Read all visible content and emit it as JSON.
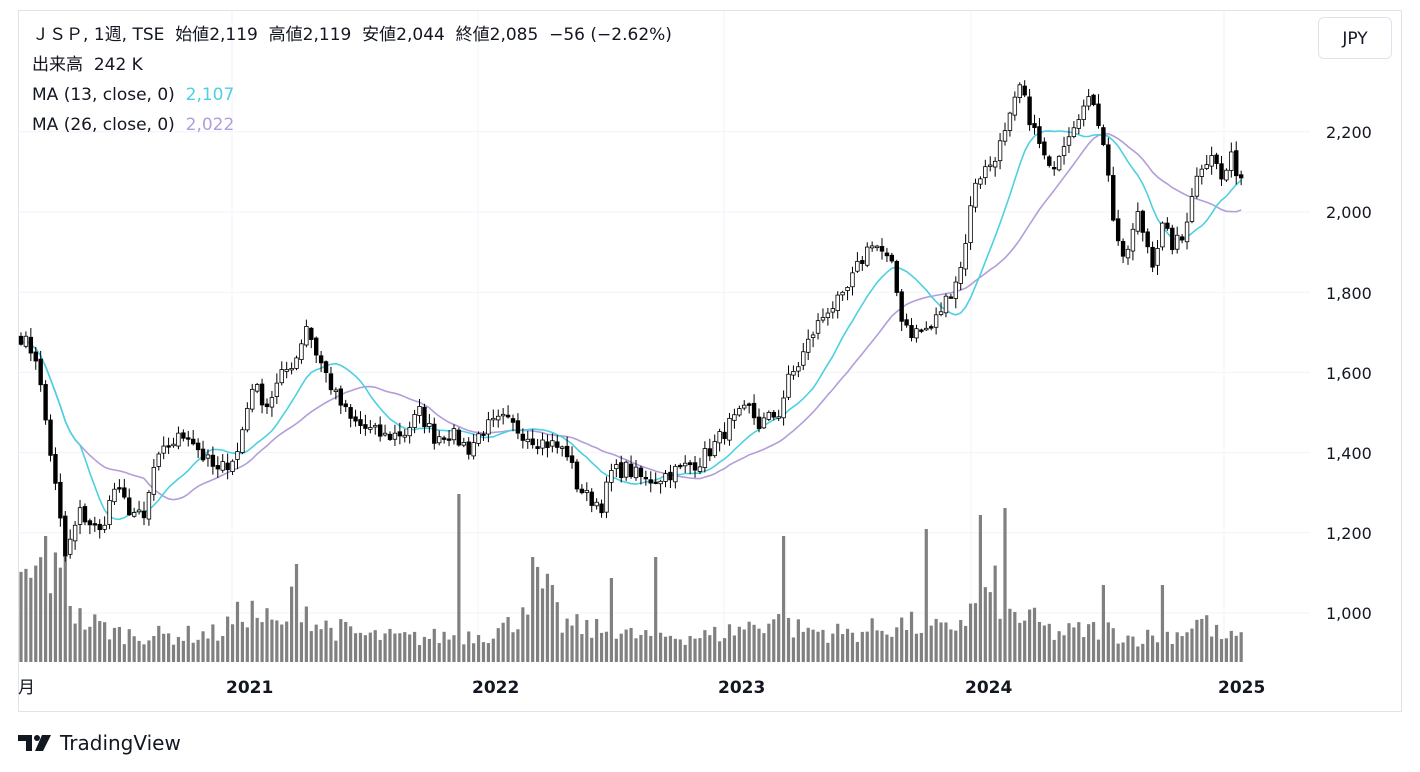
{
  "header": {
    "symbol": "ＪＳＰ",
    "interval": "1週",
    "exchange": "TSE",
    "open_label": "始値",
    "open": "2,119",
    "high_label": "高値",
    "high": "2,119",
    "low_label": "安値",
    "low": "2,044",
    "close_label": "終値",
    "close": "2,085",
    "change": "−56 (−2.62%)",
    "volume_label": "出来高",
    "volume": "242 K",
    "ma1_label": "MA (13, close, 0)",
    "ma1_value": "2,107",
    "ma2_label": "MA (26, close, 0)",
    "ma2_value": "2,022"
  },
  "currency_button": "JPY",
  "brand": "TradingView",
  "colors": {
    "up": "#ffffff",
    "down": "#000000",
    "ma13": "#4dd0e1",
    "ma26": "#b39ddb",
    "volume": "#808080",
    "grid": "#f0f3fa"
  },
  "chart_data": {
    "type": "candlestick",
    "y_ticks": [
      "2,200",
      "2,000",
      "1,800",
      "1,600",
      "1,400",
      "1,200",
      "1,000"
    ],
    "y_tick_values": [
      2200,
      2000,
      1800,
      1600,
      1400,
      1200,
      1000
    ],
    "x_ticks": [
      "月",
      "2021",
      "2022",
      "2023",
      "2024",
      "2025"
    ],
    "ylim": [
      900,
      2400
    ],
    "series": [
      {
        "name": "MA (13, close, 0)",
        "last": 2107
      },
      {
        "name": "MA (26, close, 0)",
        "last": 2022
      }
    ],
    "anchors": [
      [
        0,
        1690
      ],
      [
        3,
        1640
      ],
      [
        6,
        1400
      ],
      [
        9,
        1140
      ],
      [
        12,
        1250
      ],
      [
        16,
        1200
      ],
      [
        19,
        1310
      ],
      [
        22,
        1260
      ],
      [
        25,
        1230
      ],
      [
        27,
        1360
      ],
      [
        30,
        1420
      ],
      [
        34,
        1450
      ],
      [
        37,
        1390
      ],
      [
        40,
        1350
      ],
      [
        44,
        1400
      ],
      [
        47,
        1570
      ],
      [
        50,
        1520
      ],
      [
        53,
        1590
      ],
      [
        56,
        1640
      ],
      [
        58,
        1720
      ],
      [
        60,
        1650
      ],
      [
        64,
        1540
      ],
      [
        67,
        1480
      ],
      [
        70,
        1460
      ],
      [
        74,
        1440
      ],
      [
        78,
        1450
      ],
      [
        81,
        1500
      ],
      [
        84,
        1440
      ],
      [
        87,
        1450
      ],
      [
        91,
        1410
      ],
      [
        94,
        1460
      ],
      [
        98,
        1480
      ],
      [
        102,
        1450
      ],
      [
        105,
        1430
      ],
      [
        108,
        1420
      ],
      [
        111,
        1400
      ],
      [
        113,
        1320
      ],
      [
        115,
        1290
      ],
      [
        118,
        1270
      ],
      [
        120,
        1350
      ],
      [
        123,
        1360
      ],
      [
        127,
        1330
      ],
      [
        130,
        1340
      ],
      [
        134,
        1360
      ],
      [
        138,
        1380
      ],
      [
        141,
        1420
      ],
      [
        144,
        1470
      ],
      [
        148,
        1510
      ],
      [
        150,
        1470
      ],
      [
        154,
        1500
      ],
      [
        156,
        1580
      ],
      [
        158,
        1620
      ],
      [
        161,
        1700
      ],
      [
        164,
        1760
      ],
      [
        167,
        1780
      ],
      [
        170,
        1860
      ],
      [
        173,
        1930
      ],
      [
        175,
        1900
      ],
      [
        177,
        1860
      ],
      [
        179,
        1740
      ],
      [
        181,
        1700
      ],
      [
        185,
        1710
      ],
      [
        188,
        1780
      ],
      [
        191,
        1860
      ],
      [
        194,
        2080
      ],
      [
        197,
        2120
      ],
      [
        200,
        2190
      ],
      [
        203,
        2310
      ],
      [
        206,
        2200
      ],
      [
        209,
        2100
      ],
      [
        212,
        2180
      ],
      [
        215,
        2250
      ],
      [
        218,
        2280
      ],
      [
        220,
        2180
      ],
      [
        222,
        1990
      ],
      [
        224,
        1870
      ],
      [
        227,
        1990
      ],
      [
        230,
        1880
      ],
      [
        232,
        1960
      ],
      [
        234,
        1920
      ],
      [
        236,
        1930
      ],
      [
        238,
        2050
      ],
      [
        240,
        2120
      ],
      [
        242,
        2150
      ],
      [
        244,
        2080
      ],
      [
        246,
        2130
      ],
      [
        248,
        2085
      ]
    ],
    "volume_anchors": [
      [
        0,
        160
      ],
      [
        5,
        200
      ],
      [
        8,
        170
      ],
      [
        12,
        90
      ],
      [
        20,
        60
      ],
      [
        30,
        55
      ],
      [
        40,
        60
      ],
      [
        46,
        110
      ],
      [
        53,
        70
      ],
      [
        56,
        150
      ],
      [
        60,
        80
      ],
      [
        70,
        55
      ],
      [
        80,
        50
      ],
      [
        95,
        60
      ],
      [
        100,
        80
      ],
      [
        104,
        170
      ],
      [
        107,
        140
      ],
      [
        110,
        80
      ],
      [
        115,
        70
      ],
      [
        125,
        55
      ],
      [
        140,
        55
      ],
      [
        148,
        75
      ],
      [
        153,
        90
      ],
      [
        157,
        70
      ],
      [
        168,
        60
      ],
      [
        180,
        80
      ],
      [
        188,
        65
      ],
      [
        195,
        120
      ],
      [
        198,
        150
      ],
      [
        201,
        100
      ],
      [
        205,
        90
      ],
      [
        210,
        60
      ],
      [
        220,
        70
      ],
      [
        226,
        50
      ],
      [
        235,
        60
      ],
      [
        240,
        90
      ],
      [
        244,
        50
      ],
      [
        248,
        50
      ]
    ],
    "volume_spikes": [
      [
        5,
        180
      ],
      [
        9,
        150
      ],
      [
        56,
        140
      ],
      [
        89,
        240
      ],
      [
        104,
        150
      ],
      [
        120,
        120
      ],
      [
        129,
        150
      ],
      [
        155,
        180
      ],
      [
        184,
        190
      ],
      [
        195,
        210
      ],
      [
        200,
        220
      ],
      [
        220,
        110
      ],
      [
        232,
        110
      ]
    ]
  }
}
